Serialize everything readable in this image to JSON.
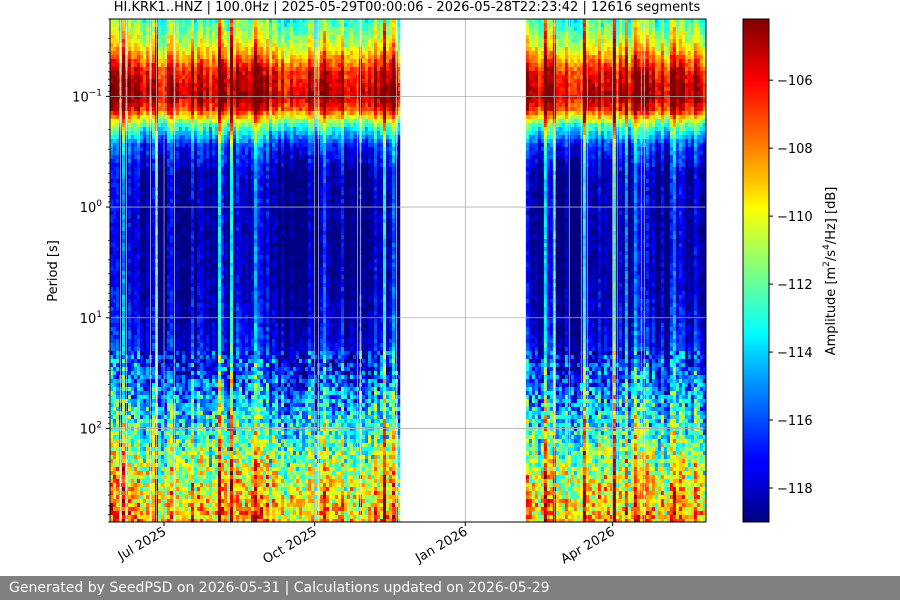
{
  "chart_data": {
    "type": "heatmap",
    "title": "HI.KRK1..HNZ | 100.0Hz | 2025-05-29T00:00:06 - 2026-05-28T22:23:42 | 12616 segments",
    "xlabel": "",
    "ylabel": "Period [s]",
    "y_scale": "log",
    "y_inverted": true,
    "y_range_s": [
      0.02,
      700
    ],
    "y_ticks": [
      {
        "value": 0.1,
        "base": "10",
        "exp": "−1"
      },
      {
        "value": 1,
        "base": "10",
        "exp": "0"
      },
      {
        "value": 10,
        "base": "10",
        "exp": "1"
      },
      {
        "value": 100,
        "base": "10",
        "exp": "2"
      }
    ],
    "x_range": [
      "2025-05-29",
      "2026-05-28"
    ],
    "x_ticks": [
      {
        "date": "2025-07-01",
        "label": "Jul 2025"
      },
      {
        "date": "2025-10-01",
        "label": "Oct 2025"
      },
      {
        "date": "2026-01-01",
        "label": "Jan 2026"
      },
      {
        "date": "2026-04-01",
        "label": "Apr 2026"
      }
    ],
    "data_gaps": [
      [
        "2025-11-22",
        "2026-02-07"
      ]
    ],
    "grid": true,
    "colormap": "jet",
    "colorbar": {
      "label_html": "Amplitude [m<tspan dy='-6' font-size='9'>2</tspan><tspan dy='6'>/s</tspan><tspan dy='-6' font-size='9'>4</tspan><tspan dy='6'>/Hz] [dB]</tspan>",
      "label": "Amplitude [m2/s4/Hz] [dB]",
      "range_db": [
        -119,
        -104.2
      ],
      "ticks": [
        {
          "value": -106,
          "label": "−106"
        },
        {
          "value": -108,
          "label": "−108"
        },
        {
          "value": -110,
          "label": "−110"
        },
        {
          "value": -112,
          "label": "−112"
        },
        {
          "value": -114,
          "label": "−114"
        },
        {
          "value": -116,
          "label": "−116"
        },
        {
          "value": -118,
          "label": "−118"
        }
      ]
    },
    "amplitude_profile": [
      {
        "period_s": 0.02,
        "db": -112.5
      },
      {
        "period_s": 0.035,
        "db": -110
      },
      {
        "period_s": 0.06,
        "db": -106
      },
      {
        "period_s": 0.1,
        "db": -104.8
      },
      {
        "period_s": 0.13,
        "db": -106.5
      },
      {
        "period_s": 0.18,
        "db": -112
      },
      {
        "period_s": 0.28,
        "db": -116.5
      },
      {
        "period_s": 0.5,
        "db": -118.3
      },
      {
        "period_s": 2,
        "db": -118.6
      },
      {
        "period_s": 5,
        "db": -118.4
      },
      {
        "period_s": 15,
        "db": -117.6
      },
      {
        "period_s": 35,
        "db": -116
      },
      {
        "period_s": 70,
        "db": -114
      },
      {
        "period_s": 150,
        "db": -112
      },
      {
        "period_s": 300,
        "db": -110
      },
      {
        "period_s": 700,
        "db": -108.5
      }
    ]
  },
  "footer": {
    "text": "Generated by SeedPSD on 2026-05-31 | Calculations updated on 2026-05-29"
  }
}
